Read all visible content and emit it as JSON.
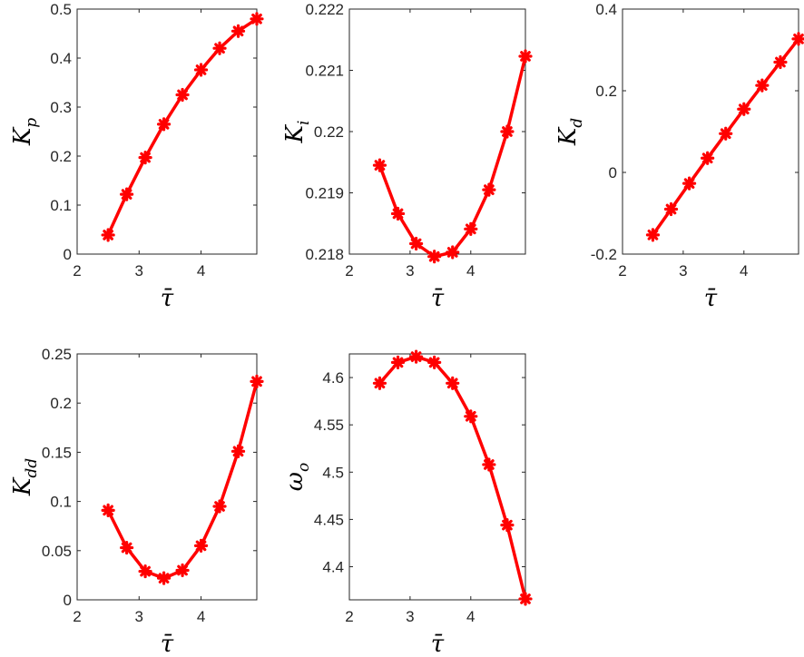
{
  "chart_data": [
    {
      "type": "line",
      "xlabel": "τ̄",
      "ylabel": "K",
      "ylabel_sub": "p",
      "xlim": [
        2,
        4.9
      ],
      "ylim": [
        0,
        0.5
      ],
      "xticks": [
        2,
        3,
        4
      ],
      "yticks": [
        0,
        0.1,
        0.2,
        0.3,
        0.4,
        0.5
      ],
      "ytick_labels": [
        "0",
        "0.1",
        "0.2",
        "0.3",
        "0.4",
        "0.5"
      ],
      "x": [
        2.5,
        2.8,
        3.1,
        3.4,
        3.7,
        4.0,
        4.3,
        4.6,
        4.9
      ],
      "series": [
        {
          "values": [
            0.039,
            0.122,
            0.197,
            0.265,
            0.325,
            0.376,
            0.42,
            0.455,
            0.48
          ]
        }
      ],
      "color": "#ff0000"
    },
    {
      "type": "line",
      "xlabel": "τ̄",
      "ylabel": "K",
      "ylabel_sub": "i",
      "xlim": [
        2,
        4.9
      ],
      "ylim": [
        0.218,
        0.222
      ],
      "xticks": [
        2,
        3,
        4
      ],
      "yticks": [
        0.218,
        0.219,
        0.22,
        0.221,
        0.222
      ],
      "ytick_labels": [
        "0.218",
        "0.219",
        "0.22",
        "0.221",
        "0.222"
      ],
      "x": [
        2.5,
        2.8,
        3.1,
        3.4,
        3.7,
        4.0,
        4.3,
        4.6,
        4.9
      ],
      "series": [
        {
          "values": [
            0.21945,
            0.21866,
            0.21817,
            0.21796,
            0.21803,
            0.21841,
            0.21905,
            0.22,
            0.22123
          ]
        }
      ],
      "color": "#ff0000"
    },
    {
      "type": "line",
      "xlabel": "τ̄",
      "ylabel": "K",
      "ylabel_sub": "d",
      "xlim": [
        2,
        4.9
      ],
      "ylim": [
        -0.2,
        0.4
      ],
      "xticks": [
        2,
        3,
        4
      ],
      "yticks": [
        -0.2,
        0,
        0.2,
        0.4
      ],
      "ytick_labels": [
        "-0.2",
        "0",
        "0.2",
        "0.4"
      ],
      "x": [
        2.5,
        2.8,
        3.1,
        3.4,
        3.7,
        4.0,
        4.3,
        4.6,
        4.9
      ],
      "series": [
        {
          "values": [
            -0.153,
            -0.09,
            -0.027,
            0.035,
            0.095,
            0.155,
            0.213,
            0.27,
            0.327
          ]
        }
      ],
      "color": "#ff0000"
    },
    {
      "type": "line",
      "xlabel": "τ̄",
      "ylabel": "K",
      "ylabel_sub": "dd",
      "xlim": [
        2,
        4.9
      ],
      "ylim": [
        0,
        0.25
      ],
      "xticks": [
        2,
        3,
        4
      ],
      "yticks": [
        0,
        0.05,
        0.1,
        0.15,
        0.2,
        0.25
      ],
      "ytick_labels": [
        "0",
        "0.05",
        "0.1",
        "0.15",
        "0.2",
        "0.25"
      ],
      "x": [
        2.5,
        2.8,
        3.1,
        3.4,
        3.7,
        4.0,
        4.3,
        4.6,
        4.9
      ],
      "series": [
        {
          "values": [
            0.091,
            0.053,
            0.029,
            0.022,
            0.03,
            0.055,
            0.095,
            0.151,
            0.222
          ]
        }
      ],
      "color": "#ff0000"
    },
    {
      "type": "line",
      "xlabel": "τ̄",
      "ylabel": "ω",
      "ylabel_sub": "o",
      "xlim": [
        2,
        4.9
      ],
      "ylim": [
        4.365,
        4.625
      ],
      "xticks": [
        2,
        3,
        4
      ],
      "yticks": [
        4.4,
        4.45,
        4.5,
        4.55,
        4.6
      ],
      "ytick_labels": [
        "4.4",
        "4.45",
        "4.5",
        "4.55",
        "4.6"
      ],
      "x": [
        2.5,
        2.8,
        3.1,
        3.4,
        3.7,
        4.0,
        4.3,
        4.6,
        4.9
      ],
      "series": [
        {
          "values": [
            4.594,
            4.616,
            4.622,
            4.616,
            4.594,
            4.559,
            4.508,
            4.444,
            4.366
          ]
        }
      ],
      "color": "#ff0000"
    }
  ]
}
